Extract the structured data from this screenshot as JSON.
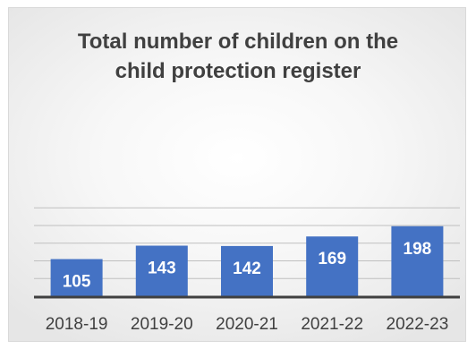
{
  "chart_data": {
    "type": "bar",
    "title_lines": [
      "Total number of children on the",
      "child protection register"
    ],
    "categories": [
      "2018-19",
      "2019-20",
      "2020-21",
      "2021-22",
      "2022-23"
    ],
    "values": [
      105,
      143,
      142,
      169,
      198
    ],
    "ylim": [
      0,
      250
    ],
    "grid": true,
    "legend": "none",
    "bar_color": "#4472c4",
    "gridline_color": "#bfbfbf",
    "axis_color": "#404040",
    "label_color": "#ffffff",
    "text_color": "#404040"
  }
}
